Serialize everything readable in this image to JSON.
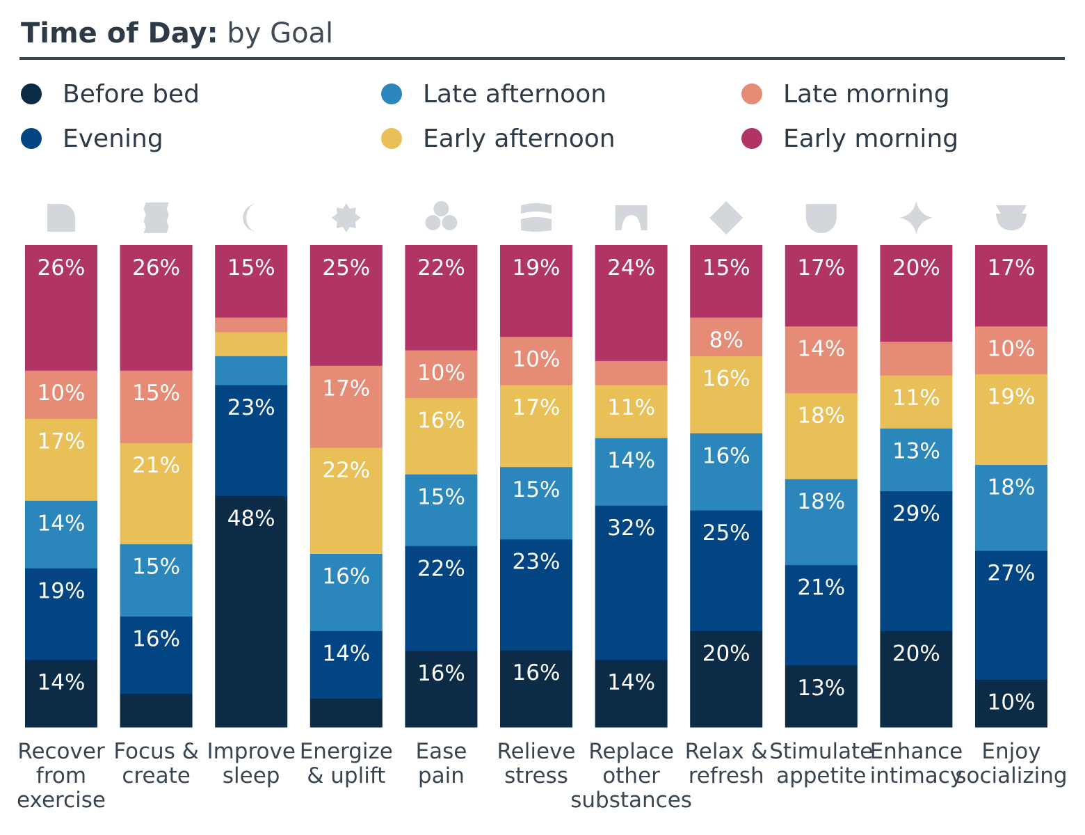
{
  "title": {
    "bold": "Time of Day:",
    "rest": "by Goal"
  },
  "legend": [
    {
      "label": "Before bed",
      "color": "#0b2b46"
    },
    {
      "label": "Evening",
      "color": "#034582"
    },
    {
      "label": "Late afternoon",
      "color": "#2a86bb"
    },
    {
      "label": "Early afternoon",
      "color": "#e9bf57"
    },
    {
      "label": "Late morning",
      "color": "#e68b76"
    },
    {
      "label": "Early morning",
      "color": "#b03464"
    }
  ],
  "icons": [
    "arch-icon",
    "wavy-rectangle-icon",
    "crescent-moon-icon",
    "sunburst-icon",
    "cloud-icon",
    "scroll-icon",
    "doorway-icon",
    "diamond-icon",
    "shield-icon",
    "sparkle-icon",
    "cup-icon"
  ],
  "chart_data": {
    "type": "bar",
    "stacked": true,
    "orientation": "vertical",
    "categories": [
      [
        "Recover",
        "from",
        "exercise"
      ],
      [
        "Focus &",
        "create"
      ],
      [
        "Improve",
        "sleep"
      ],
      [
        "Energize",
        "& uplift"
      ],
      [
        "Ease",
        "pain"
      ],
      [
        "Relieve",
        "stress"
      ],
      [
        "Replace",
        "other",
        "substances"
      ],
      [
        "Relax &",
        "refresh"
      ],
      [
        "Stimulate",
        "appetite"
      ],
      [
        "Enhance",
        "intimacy"
      ],
      [
        "Enjoy",
        "socializing"
      ]
    ],
    "series": [
      {
        "name": "Before bed",
        "color": "#0b2b46",
        "values": [
          14,
          7,
          48,
          6,
          16,
          16,
          14,
          20,
          13,
          20,
          10
        ],
        "labels": [
          "14%",
          "",
          "48%",
          "",
          "16%",
          "16%",
          "14%",
          "20%",
          "13%",
          "20%",
          "10%"
        ]
      },
      {
        "name": "Evening",
        "color": "#034582",
        "values": [
          19,
          16,
          23,
          14,
          22,
          23,
          32,
          25,
          21,
          29,
          27
        ],
        "labels": [
          "19%",
          "16%",
          "23%",
          "14%",
          "22%",
          "23%",
          "32%",
          "25%",
          "21%",
          "29%",
          "27%"
        ]
      },
      {
        "name": "Late afternoon",
        "color": "#2a86bb",
        "values": [
          14,
          15,
          6,
          16,
          15,
          15,
          14,
          16,
          18,
          13,
          18
        ],
        "labels": [
          "14%",
          "15%",
          "",
          "16%",
          "15%",
          "15%",
          "14%",
          "16%",
          "18%",
          "13%",
          "18%"
        ]
      },
      {
        "name": "Early afternoon",
        "color": "#e9bf57",
        "values": [
          17,
          21,
          5,
          22,
          16,
          17,
          11,
          16,
          18,
          11,
          19
        ],
        "labels": [
          "17%",
          "21%",
          "",
          "22%",
          "16%",
          "17%",
          "11%",
          "16%",
          "18%",
          "11%",
          "19%"
        ]
      },
      {
        "name": "Late morning",
        "color": "#e68b76",
        "values": [
          10,
          15,
          3,
          17,
          10,
          10,
          5,
          8,
          14,
          7,
          10
        ],
        "labels": [
          "10%",
          "15%",
          "",
          "17%",
          "10%",
          "10%",
          "",
          "8%",
          "14%",
          "",
          "10%"
        ]
      },
      {
        "name": "Early morning",
        "color": "#b03464",
        "values": [
          26,
          26,
          15,
          25,
          22,
          19,
          24,
          15,
          17,
          20,
          17
        ],
        "labels": [
          "26%",
          "26%",
          "15%",
          "25%",
          "22%",
          "19%",
          "24%",
          "15%",
          "17%",
          "20%",
          "17%"
        ]
      }
    ]
  }
}
